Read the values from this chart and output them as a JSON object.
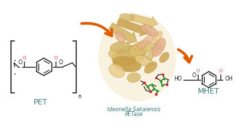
{
  "background_color": "#ffffff",
  "arrow_color": "#e05a00",
  "text_color_teal": "#3a7a7a",
  "text_color_red": "#d04050",
  "text_color_black": "#1a1a1a",
  "pet_label": "PET",
  "mhet_label": "MHET",
  "enzyme_label_line1": "Ideonella Sakaiensis",
  "enzyme_label_line2": "PETase",
  "label_fontsize": 7,
  "enzyme_label_fontsize": 5.5,
  "protein_color1": "#d4b86a",
  "protein_color2": "#c8a04a",
  "protein_color3": "#e8cc88",
  "protein_color4": "#b89040",
  "protein_color5": "#dfc070",
  "protein_salmon": "#e8b090"
}
